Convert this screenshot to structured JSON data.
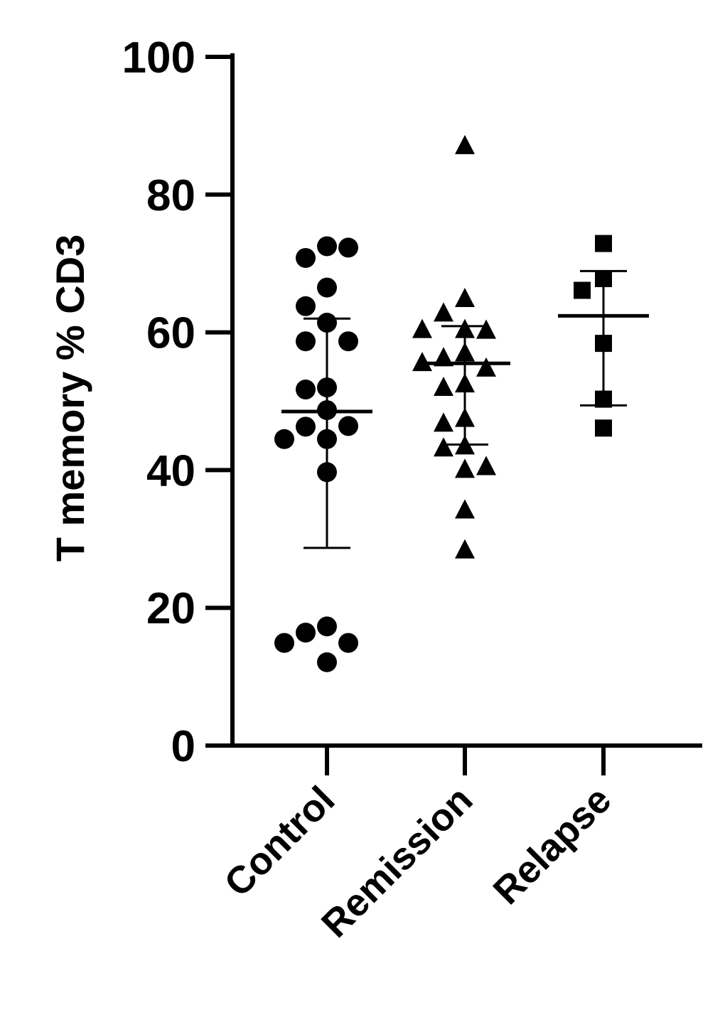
{
  "chart_data": {
    "type": "scatter",
    "title": "",
    "xlabel": "",
    "ylabel": "T memory % CD3",
    "ylim": [
      0,
      100
    ],
    "yticks": [
      0,
      20,
      40,
      60,
      80,
      100
    ],
    "ytick_labels": [
      "0",
      "20",
      "40",
      "60",
      "80",
      "100"
    ],
    "categories": [
      "Control",
      "Remission",
      "Relapse"
    ],
    "grid": false,
    "legend": "none",
    "series": [
      {
        "category": "Control",
        "marker": "circle",
        "values": [
          72.5,
          70.8,
          72.3,
          66.5,
          63.8,
          61.4,
          58.7,
          58.7,
          52.0,
          51.7,
          48.7,
          46.3,
          46.4,
          44.5,
          44.5,
          39.7,
          17.3,
          16.4,
          14.9,
          14.9,
          12.1
        ],
        "mean": 48.5,
        "sd_low": 28.7,
        "sd_high": 62.0
      },
      {
        "category": "Remission",
        "marker": "triangle",
        "values": [
          87.0,
          64.8,
          62.7,
          60.3,
          60.2,
          60.3,
          56.9,
          56.2,
          54.7,
          55.5,
          52.4,
          51.9,
          47.4,
          46.7,
          43.4,
          43.1,
          40.0,
          40.4,
          34.1,
          28.3
        ],
        "mean": 55.5,
        "sd_low": 43.7,
        "sd_high": 60.9
      },
      {
        "category": "Relapse",
        "marker": "square",
        "values": [
          72.9,
          67.8,
          66.1,
          58.4,
          50.3,
          46.1
        ],
        "mean": 62.4,
        "sd_low": 49.4,
        "sd_high": 68.9
      }
    ]
  }
}
